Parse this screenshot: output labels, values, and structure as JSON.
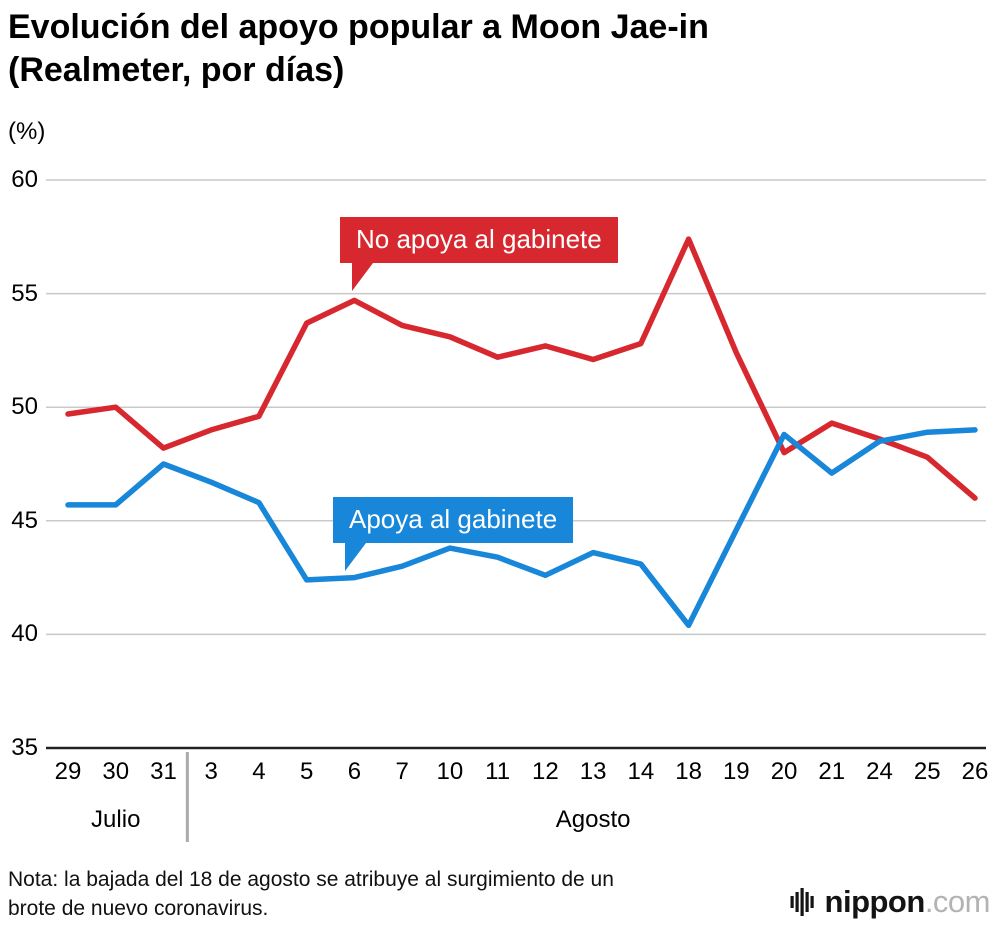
{
  "title": "Evolución del apoyo popular a Moon Jae-in\n(Realmeter, por días)",
  "note": "Nota: la bajada del 18 de agosto se atribuye al surgimiento de un\nbrote de nuevo coronavirus.",
  "logo": {
    "brand": "nippon",
    "tld": ".com"
  },
  "chart_data": {
    "type": "line",
    "title": "Evolución del apoyo popular a Moon Jae-in (Realmeter, por días)",
    "ylabel": "(%)",
    "xlabel": "",
    "ylim": [
      35,
      60
    ],
    "yticks": [
      35,
      40,
      45,
      50,
      55,
      60
    ],
    "grid": true,
    "legend_position": "inline-callouts",
    "categories": [
      "29",
      "30",
      "31",
      "3",
      "4",
      "5",
      "6",
      "7",
      "10",
      "11",
      "12",
      "13",
      "14",
      "18",
      "19",
      "20",
      "21",
      "24",
      "25",
      "26"
    ],
    "months": [
      {
        "label": "Julio",
        "from": 0,
        "to": 2
      },
      {
        "label": "Agosto",
        "from": 3,
        "to": 19
      }
    ],
    "series": [
      {
        "name": "No apoya al gabinete",
        "color": "#d7282f",
        "values": [
          49.7,
          50.0,
          48.2,
          49.0,
          49.6,
          53.7,
          54.7,
          53.6,
          53.1,
          52.2,
          52.7,
          52.1,
          52.8,
          57.4,
          52.4,
          48.0,
          49.3,
          48.6,
          47.8,
          46.0
        ]
      },
      {
        "name": "Apoya al gabinete",
        "color": "#1886d9",
        "values": [
          45.7,
          45.7,
          47.5,
          46.7,
          45.8,
          42.4,
          42.5,
          43.0,
          43.8,
          43.4,
          42.6,
          43.6,
          43.1,
          40.4,
          44.6,
          48.8,
          47.1,
          48.5,
          48.9,
          49.0
        ]
      }
    ],
    "annotations": [
      {
        "text": "No apoya al gabinete",
        "anchor_category": "6",
        "anchor_value": 54.7
      },
      {
        "text": "Apoya al gabinete",
        "anchor_category": "6",
        "anchor_value": 42.5
      }
    ],
    "colors": {
      "grid": "#c9c9c9",
      "axis": "#222222",
      "separator": "#aaaaaa"
    }
  }
}
